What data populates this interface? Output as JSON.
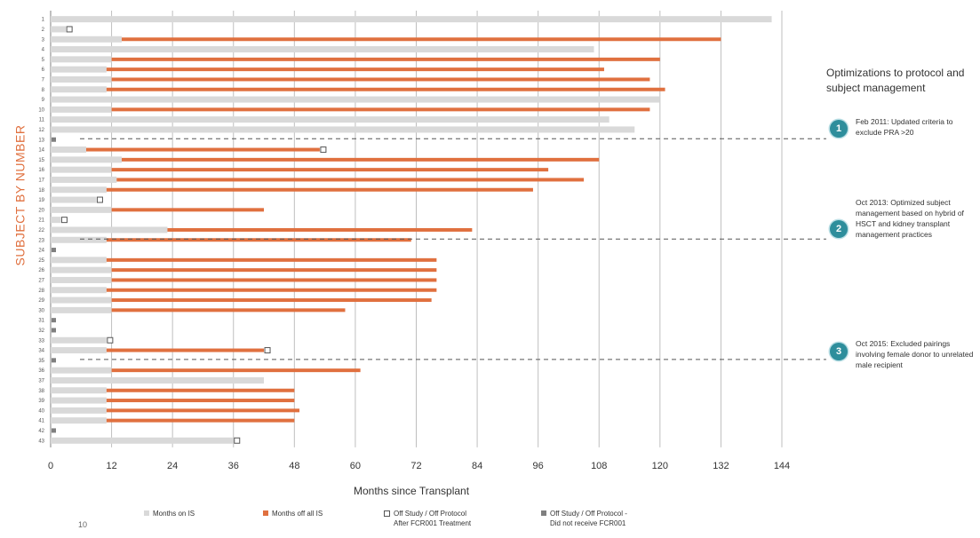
{
  "chart_data": {
    "type": "bar",
    "orientation": "horizontal",
    "stacked": true,
    "xlabel": "Months since Transplant",
    "ylabel": "SUBJECT BY NUMBER",
    "xlim": [
      0,
      144
    ],
    "xticks": [
      0,
      12,
      24,
      36,
      48,
      60,
      72,
      84,
      96,
      108,
      120,
      132,
      144
    ],
    "grid": true,
    "legend_position": "bottom",
    "categories": [
      "1",
      "2",
      "3",
      "4",
      "5",
      "6",
      "7",
      "8",
      "9",
      "10",
      "11",
      "12",
      "13",
      "14",
      "15",
      "16",
      "17",
      "18",
      "19",
      "20",
      "21",
      "22",
      "23",
      "24",
      "25",
      "26",
      "27",
      "28",
      "29",
      "30",
      "31",
      "32",
      "33",
      "34",
      "35",
      "36",
      "37",
      "38",
      "39",
      "40",
      "41",
      "42",
      "43"
    ],
    "series": [
      {
        "name": "Months on IS",
        "values": [
          142,
          3,
          14,
          107,
          12,
          11,
          12,
          11,
          120,
          12,
          110,
          115,
          0,
          7,
          14,
          12,
          13,
          11,
          9,
          12,
          2,
          23,
          11,
          0,
          11,
          12,
          12,
          11,
          12,
          12,
          0,
          0,
          11,
          11,
          0,
          12,
          42,
          11,
          11,
          11,
          11,
          0,
          36
        ]
      },
      {
        "name": "Months off all IS",
        "values": [
          0,
          0,
          118,
          0,
          108,
          98,
          106,
          110,
          0,
          106,
          0,
          0,
          0,
          46,
          94,
          86,
          92,
          84,
          0,
          30,
          0,
          60,
          60,
          0,
          65,
          64,
          64,
          65,
          63,
          46,
          0,
          0,
          0,
          31,
          0,
          49,
          0,
          37,
          37,
          38,
          37,
          0,
          0
        ]
      }
    ],
    "markers_after_fcr001": [
      2,
      14,
      19,
      21,
      33,
      34,
      43
    ],
    "markers_no_fcr001": [
      13,
      24,
      31,
      32,
      35,
      42
    ],
    "annotations": [
      {
        "number": "1",
        "after_subject": 13
      },
      {
        "number": "2",
        "after_subject": 23
      },
      {
        "number": "3",
        "after_subject": 35
      }
    ]
  },
  "colors": {
    "on_is": "#d9d9d9",
    "off_is": "#e0703f",
    "marker_dark": "#7f7f7f",
    "marker_ring": "#2e8e9c",
    "grid": "#bfbfbf"
  },
  "legend": {
    "on_is": "Months on IS",
    "off_is": "Months off all IS",
    "after_fcr001": "Off Study / Off Protocol\nAfter FCR001 Treatment",
    "no_fcr001": "Off Study / Off Protocol -\nDid not receive FCR001"
  },
  "panel": {
    "title": "Optimizations to protocol and subject management",
    "notes": [
      {
        "number": "1",
        "text": "Feb 2011: Updated criteria to exclude PRA >20"
      },
      {
        "number": "2",
        "text": "Oct 2013: Optimized subject management based on hybrid of HSCT and kidney transplant management practices"
      },
      {
        "number": "3",
        "text": "Oct 2015: Excluded pairings involving female donor to unrelated male recipient"
      }
    ]
  },
  "page_number": "10"
}
